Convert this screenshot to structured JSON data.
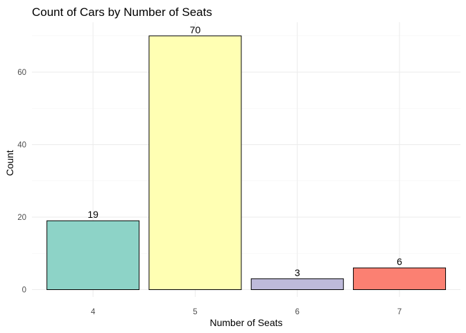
{
  "chart_data": {
    "type": "bar",
    "title": "Count of Cars by Number of Seats",
    "xlabel": "Number of Seats",
    "ylabel": "Count",
    "categories": [
      "4",
      "5",
      "6",
      "7"
    ],
    "values": [
      19,
      70,
      3,
      6
    ],
    "data_labels": [
      "19",
      "70",
      "3",
      "6"
    ],
    "colors": [
      "#8DD3C7",
      "#FFFFB3",
      "#BEBADA",
      "#FB8072"
    ],
    "ylim": [
      0,
      73.5
    ],
    "yticks": [
      0,
      20,
      40,
      60
    ],
    "ytick_labels": [
      "0",
      "20",
      "40",
      "60"
    ],
    "grid": true,
    "legend": "none"
  }
}
